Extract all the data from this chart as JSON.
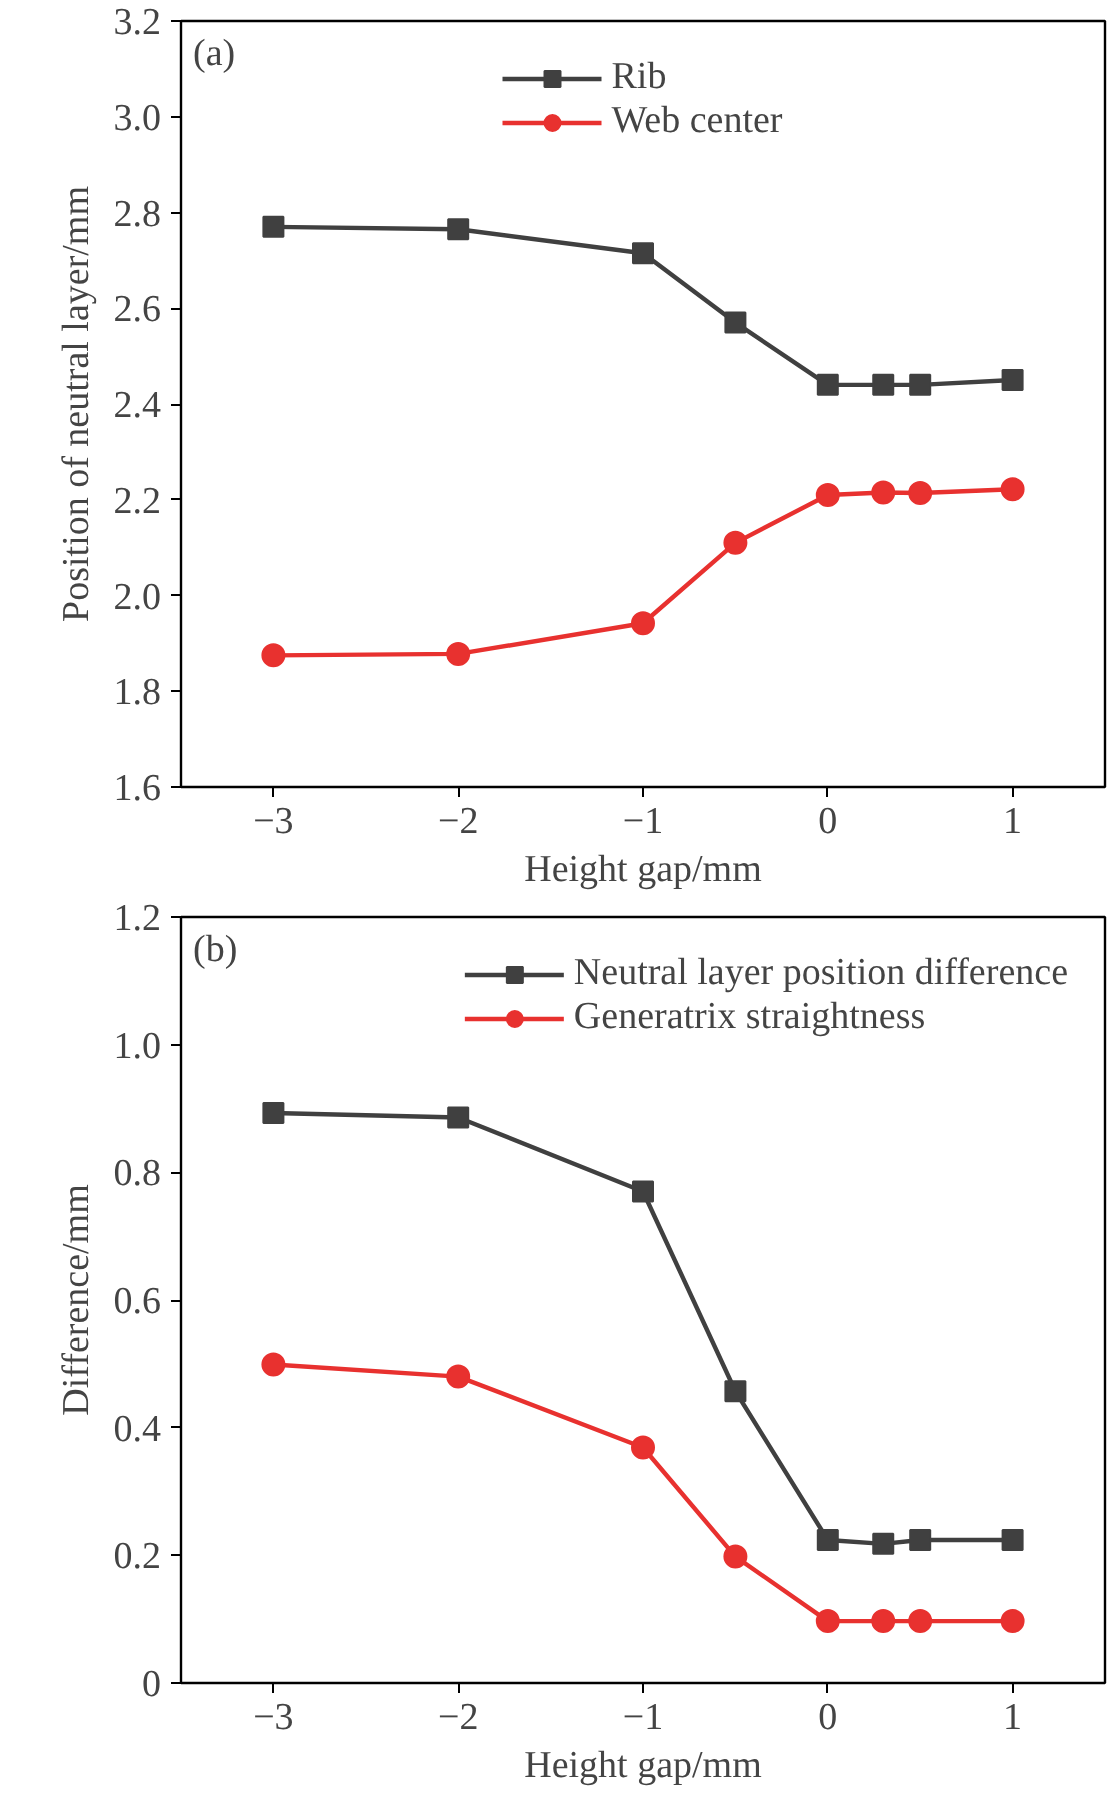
{
  "chart_data": [
    {
      "type": "line",
      "annotations": [
        "(a)"
      ],
      "xlabel": "Height gap/mm",
      "ylabel": "Position of neutral layer/mm",
      "x": [
        -3,
        -2,
        -1,
        -0.5,
        0,
        0.3,
        0.5,
        1
      ],
      "series": [
        {
          "name": "Rib",
          "color": "#404040",
          "marker": "square",
          "values": [
            2.77,
            2.765,
            2.715,
            2.57,
            2.44,
            2.44,
            2.44,
            2.45
          ]
        },
        {
          "name": "Web center",
          "color": "#e8312f",
          "marker": "circle",
          "values": [
            1.875,
            1.878,
            1.942,
            2.11,
            2.21,
            2.215,
            2.214,
            2.222
          ]
        }
      ],
      "xlim": [
        -3.5,
        1.5
      ],
      "xticks": [
        {
          "value": -3,
          "label": "−3"
        },
        {
          "value": -2,
          "label": "−2"
        },
        {
          "value": -1,
          "label": "−1"
        },
        0,
        1
      ],
      "ylim": [
        1.6,
        3.2
      ],
      "yticks": [
        {
          "value": 1.6,
          "label": "1.6"
        },
        {
          "value": 1.8,
          "label": "1.8"
        },
        {
          "value": 2.0,
          "label": "2.0"
        },
        {
          "value": 2.2,
          "label": "2.2"
        },
        {
          "value": 2.4,
          "label": "2.4"
        },
        {
          "value": 2.6,
          "label": "2.6"
        },
        {
          "value": 2.8,
          "label": "2.8"
        },
        {
          "value": 3.0,
          "label": "3.0"
        },
        {
          "value": 3.2,
          "label": "3.2"
        }
      ],
      "legend": "top",
      "grid": false
    },
    {
      "type": "line",
      "annotations": [
        "(b)"
      ],
      "xlabel": "Height gap/mm",
      "ylabel": "Difference/mm",
      "x": [
        -3,
        -2,
        -1,
        -0.5,
        0,
        0.3,
        0.5,
        1
      ],
      "series": [
        {
          "name": "Neutral layer position difference",
          "color": "#404040",
          "marker": "square",
          "values": [
            0.893,
            0.886,
            0.77,
            0.457,
            0.224,
            0.218,
            0.224,
            0.224
          ]
        },
        {
          "name": "Generatrix straightness",
          "color": "#e8312f",
          "marker": "circle",
          "values": [
            0.499,
            0.48,
            0.369,
            0.198,
            0.097,
            0.097,
            0.097,
            0.097
          ]
        }
      ],
      "xlim": [
        -3.5,
        1.5
      ],
      "xticks": [
        {
          "value": -3,
          "label": "−3"
        },
        {
          "value": -2,
          "label": "−2"
        },
        {
          "value": -1,
          "label": "−1"
        },
        0,
        1
      ],
      "ylim": [
        0,
        1.2
      ],
      "yticks": [
        0,
        {
          "value": 0.2,
          "label": "0.2"
        },
        {
          "value": 0.4,
          "label": "0.4"
        },
        {
          "value": 0.6,
          "label": "0.6"
        },
        {
          "value": 0.8,
          "label": "0.8"
        },
        {
          "value": 1.0,
          "label": "1.0"
        },
        {
          "value": 1.2,
          "label": "1.2"
        }
      ],
      "legend": "top right",
      "grid": false
    }
  ]
}
